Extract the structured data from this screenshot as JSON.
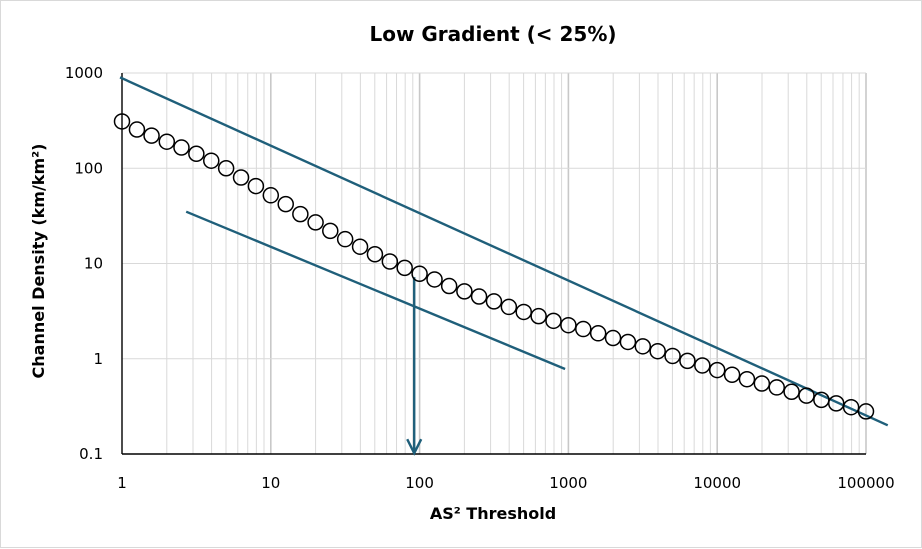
{
  "chart_data": {
    "type": "scatter",
    "title": "Low Gradient (< 25%)",
    "xlabel": "AS² Threshold",
    "ylabel": "Channel Density (km/km²)",
    "xscale": "log",
    "yscale": "log",
    "xlim": [
      1,
      100000
    ],
    "ylim": [
      0.1,
      1000
    ],
    "xticks": [
      "1",
      "10",
      "100",
      "1000",
      "10000",
      "100000"
    ],
    "yticks": [
      "0.1",
      "1",
      "10",
      "100",
      "1000"
    ],
    "grid": true,
    "legend": "none",
    "series": [
      {
        "marker": "open-circle",
        "x": [
          1,
          1.26,
          1.58,
          2,
          2.51,
          3.16,
          3.98,
          5.01,
          6.31,
          7.94,
          10,
          12.6,
          15.8,
          20,
          25.1,
          31.6,
          39.8,
          50.1,
          63.1,
          79.4,
          100,
          126,
          158,
          200,
          251,
          316,
          398,
          501,
          631,
          794,
          1000,
          1259,
          1585,
          1995,
          2512,
          3162,
          3981,
          5012,
          6310,
          7943,
          10000,
          12589,
          15849,
          19953,
          25119,
          31623,
          39811,
          50119,
          63096,
          79433,
          100000
        ],
        "y": [
          310,
          255,
          220,
          190,
          165,
          142,
          120,
          100,
          80,
          65,
          52,
          42,
          33,
          27,
          22,
          18,
          15,
          12.5,
          10.5,
          9,
          7.8,
          6.8,
          5.8,
          5.1,
          4.5,
          4,
          3.5,
          3.1,
          2.8,
          2.5,
          2.25,
          2.05,
          1.85,
          1.65,
          1.5,
          1.35,
          1.2,
          1.07,
          0.95,
          0.85,
          0.76,
          0.68,
          0.61,
          0.55,
          0.5,
          0.45,
          0.41,
          0.37,
          0.34,
          0.31,
          0.28
        ]
      }
    ],
    "lines": [
      {
        "color": "#1f5f7a",
        "x": [
          0.97,
          140000
        ],
        "y": [
          900,
          0.2
        ]
      },
      {
        "color": "#1f5f7a",
        "x": [
          2.7,
          950
        ],
        "y": [
          35,
          0.78
        ]
      },
      {
        "color": "#1f5f7a",
        "x": [
          92,
          92
        ],
        "y": [
          7.2,
          0.102
        ],
        "arrow": "end"
      }
    ],
    "colors": {
      "marker": "#000000",
      "lines": "#1f5f7a",
      "grid": "#d9d9d9"
    }
  }
}
